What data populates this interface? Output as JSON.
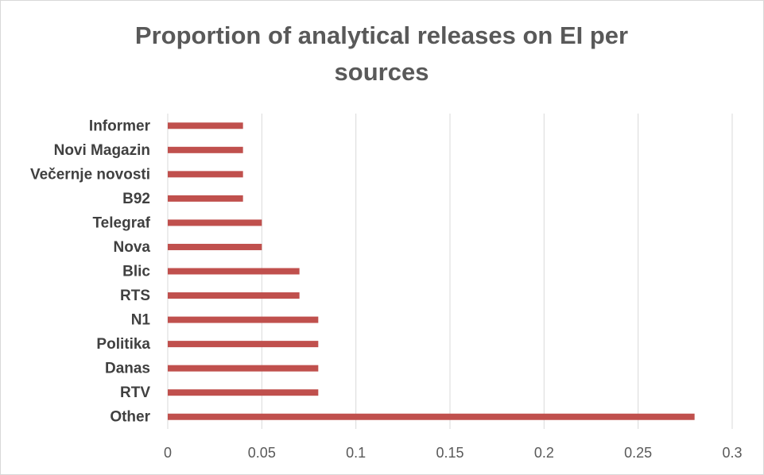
{
  "chart_data": {
    "type": "bar",
    "orientation": "horizontal",
    "title": "Proportion of analytical releases on EI per sources",
    "xlabel": "",
    "ylabel": "",
    "categories": [
      "Other",
      "RTV",
      "Danas",
      "Politika",
      "N1",
      "RTS",
      "Blic",
      "Nova",
      "Telegraf",
      "B92",
      "Večernje novosti",
      "Novi Magazin",
      "Informer"
    ],
    "values": [
      0.28,
      0.08,
      0.08,
      0.08,
      0.08,
      0.07,
      0.07,
      0.05,
      0.05,
      0.04,
      0.04,
      0.04,
      0.04
    ],
    "xlim": [
      0,
      0.3
    ],
    "xticks": [
      "0",
      "0.05",
      "0.1",
      "0.15",
      "0.2",
      "0.25",
      "0.3"
    ],
    "grid": "vertical",
    "legend": "none",
    "bar_color": "#c0504d",
    "grid_color": "#d9d9d9"
  }
}
